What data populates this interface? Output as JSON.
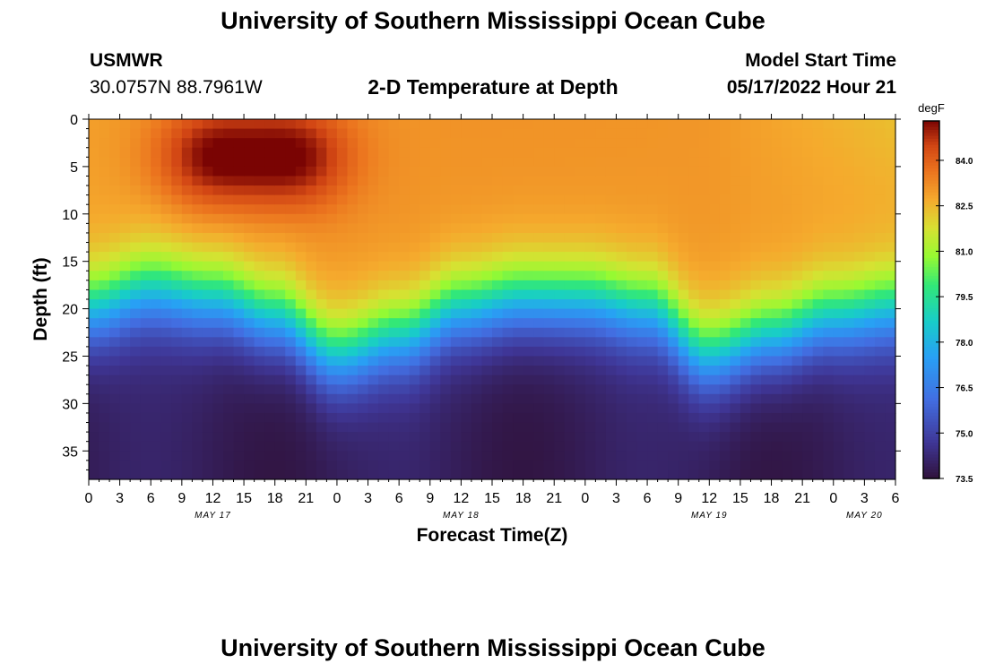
{
  "header": {
    "title": "University of Southern Mississippi Ocean Cube",
    "station": "USMWR",
    "coords": "30.0757N  88.7961W",
    "plot_title": "2-D Temperature at Depth",
    "start_label": "Model Start Time",
    "start_value": "05/17/2022 Hour 21"
  },
  "footer": {
    "title": "University of Southern Mississippi Ocean Cube"
  },
  "chart_data": {
    "type": "heatmap",
    "title": "2-D Temperature at Depth",
    "xlabel": "Forecast Time(Z)",
    "ylabel": "Depth (ft)",
    "x_range_hours": [
      0,
      78
    ],
    "y_range_ft": [
      0,
      38
    ],
    "x_tick_labels": [
      "0",
      "3",
      "6",
      "9",
      "12",
      "15",
      "18",
      "21",
      "0",
      "3",
      "6",
      "9",
      "12",
      "15",
      "18",
      "21",
      "0",
      "3",
      "6",
      "9",
      "12",
      "15",
      "18",
      "21",
      "0",
      "3",
      "6"
    ],
    "date_labels": [
      {
        "text": "MAY 17",
        "hour": 12
      },
      {
        "text": "MAY 18",
        "hour": 36
      },
      {
        "text": "MAY 19",
        "hour": 60
      },
      {
        "text": "MAY 20",
        "hour": 75
      }
    ],
    "y_ticks": [
      0,
      5,
      10,
      15,
      20,
      25,
      30,
      35
    ],
    "y_tick_labels": [
      "0",
      "5",
      "10",
      "15",
      "20",
      "25",
      "30",
      "35"
    ],
    "colorbar": {
      "unit": "degF",
      "range": [
        73.5,
        85.3
      ],
      "ticks": [
        84.0,
        82.5,
        81.0,
        79.5,
        78.0,
        76.5,
        75.0,
        73.5
      ],
      "tick_labels": [
        "84.0",
        "82.5",
        "81.0",
        "79.5",
        "78.0",
        "76.5",
        "75.0",
        "73.5"
      ]
    },
    "surface_temp_hotspots_degF": [
      {
        "hour": 12,
        "depth_ft": 4,
        "value": 85.2
      },
      {
        "hour": 20,
        "depth_ft": 4,
        "value": 85.2
      }
    ],
    "layer_20ft_depth_by_hour": [
      {
        "hour": 0,
        "depth_ft": 17
      },
      {
        "hour": 6,
        "depth_ft": 15
      },
      {
        "hour": 12,
        "depth_ft": 16
      },
      {
        "hour": 18,
        "depth_ft": 18
      },
      {
        "hour": 24,
        "depth_ft": 22
      },
      {
        "hour": 30,
        "depth_ft": 20
      },
      {
        "hour": 36,
        "depth_ft": 17
      },
      {
        "hour": 42,
        "depth_ft": 16
      },
      {
        "hour": 48,
        "depth_ft": 16
      },
      {
        "hour": 54,
        "depth_ft": 17
      },
      {
        "hour": 60,
        "depth_ft": 22
      },
      {
        "hour": 66,
        "depth_ft": 20
      },
      {
        "hour": 72,
        "depth_ft": 18
      },
      {
        "hour": 78,
        "depth_ft": 17
      }
    ],
    "bottom_temp_degF": 73.6
  }
}
